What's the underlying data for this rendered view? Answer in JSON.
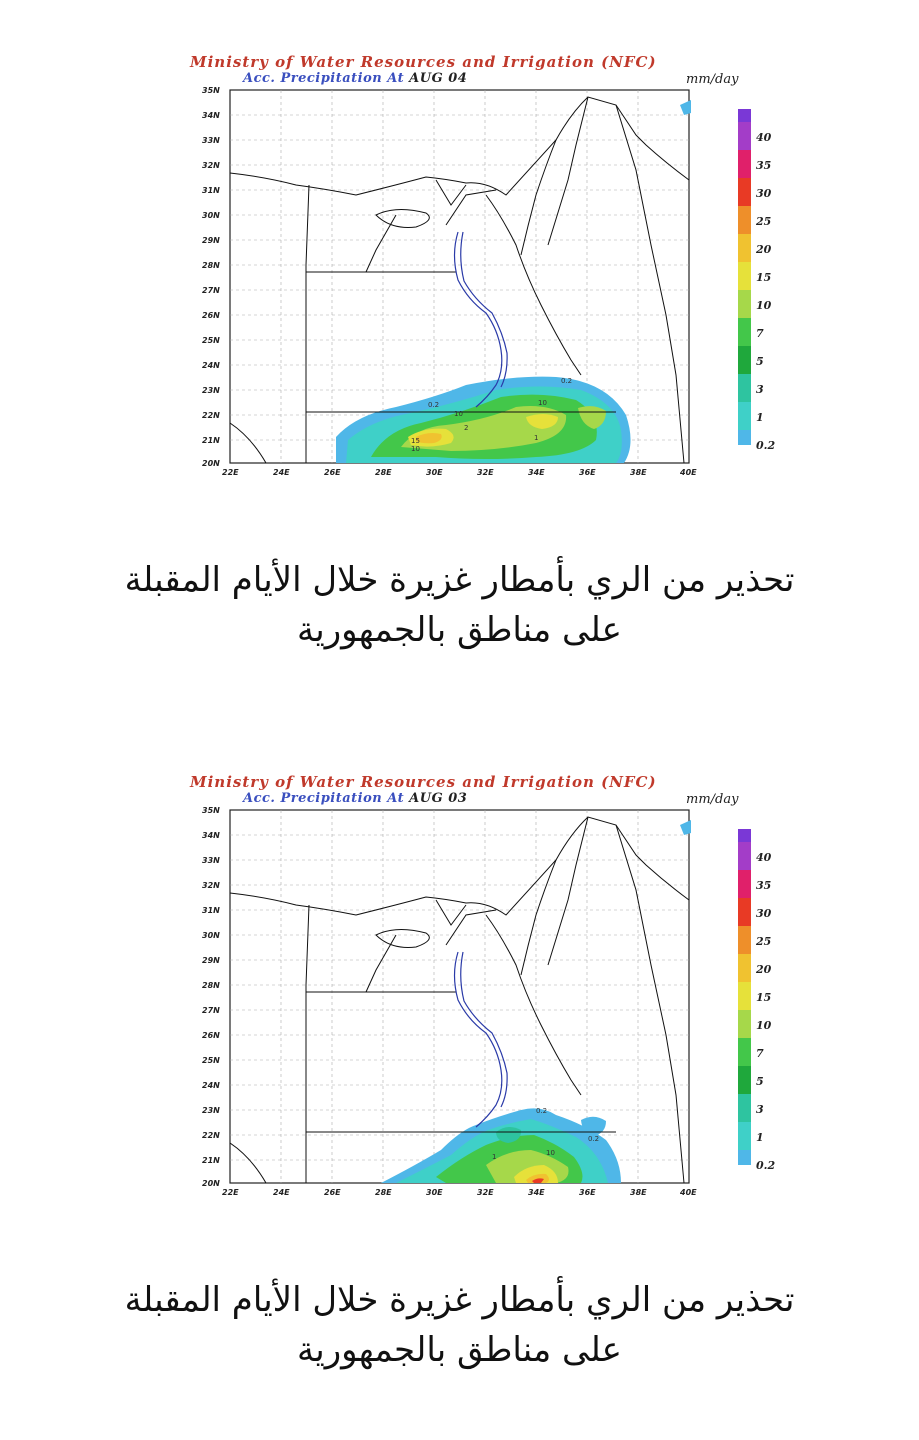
{
  "panels": [
    {
      "title": "Ministry of Water Resources and Irrigation (NFC)",
      "subtitle_prefix": "Acc. Precipitation  At",
      "date": "AUG 04",
      "units": "mm/day",
      "lat_ticks": [
        "35N",
        "34N",
        "33N",
        "32N",
        "31N",
        "30N",
        "29N",
        "28N",
        "27N",
        "26N",
        "25N",
        "24N",
        "23N",
        "22N",
        "21N",
        "20N"
      ],
      "lon_ticks": [
        "22E",
        "24E",
        "26E",
        "28E",
        "30E",
        "32E",
        "34E",
        "36E",
        "38E",
        "40E"
      ],
      "colorbar_levels": [
        "0.2",
        "1",
        "3",
        "5",
        "7",
        "10",
        "15",
        "20",
        "25",
        "30",
        "35",
        "40"
      ],
      "contour_labels": [
        "0.2",
        "10",
        "2",
        "15",
        "10",
        "10",
        "0.2",
        "1"
      ],
      "caption_line1": "تحذير من الري بأمطار غزيرة خلال الأيام المقبلة",
      "caption_line2": "على مناطق بالجمهورية"
    },
    {
      "title": "Ministry of Water Resources and Irrigation (NFC)",
      "subtitle_prefix": "Acc. Precipitation  At",
      "date": "AUG 03",
      "units": "mm/day",
      "lat_ticks": [
        "35N",
        "34N",
        "33N",
        "32N",
        "31N",
        "30N",
        "29N",
        "28N",
        "27N",
        "26N",
        "25N",
        "24N",
        "23N",
        "22N",
        "21N",
        "20N"
      ],
      "lon_ticks": [
        "22E",
        "24E",
        "26E",
        "28E",
        "30E",
        "32E",
        "34E",
        "36E",
        "38E",
        "40E"
      ],
      "colorbar_levels": [
        "0.2",
        "1",
        "3",
        "5",
        "7",
        "10",
        "15",
        "20",
        "25",
        "30",
        "35",
        "40"
      ],
      "contour_labels": [
        "0.2",
        "1",
        "10",
        "0.2"
      ],
      "caption_line1": "تحذير من الري بأمطار غزيرة خلال الأيام المقبلة",
      "caption_line2": "على مناطق بالجمهورية"
    }
  ],
  "colors": {
    "title": "#c0392b",
    "subtitle": "#3a4fbf",
    "colorbar": [
      "#4fb7e8",
      "#3fd0c8",
      "#2ec4a0",
      "#1fa83c",
      "#43c74a",
      "#a6d84a",
      "#e6e13a",
      "#f0c230",
      "#ee8f2a",
      "#e83a25",
      "#e0206a",
      "#a33dc8",
      "#7a38d6"
    ]
  }
}
